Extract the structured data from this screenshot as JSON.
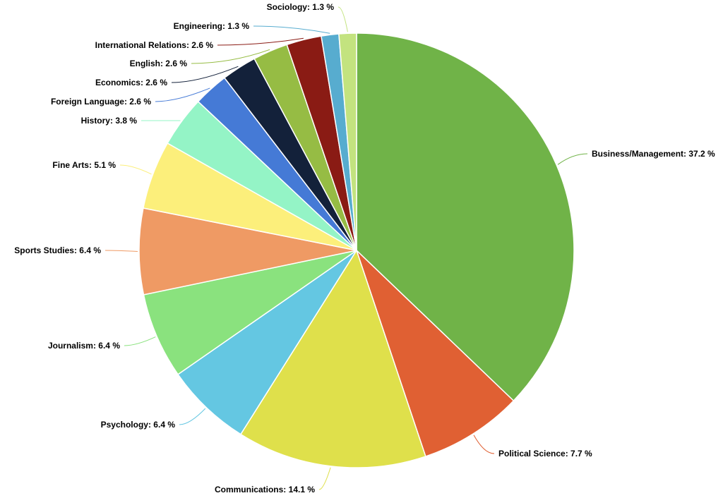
{
  "chart_data": {
    "type": "pie",
    "start_angle_deg": 0,
    "direction": "clockwise",
    "legend": "none",
    "slices": [
      {
        "label": "Business/Management",
        "value": 37.2,
        "text": "Business/Management: 37.2 %",
        "color": "#70b348"
      },
      {
        "label": "Political Science",
        "value": 7.7,
        "text": "Political Science: 7.7 %",
        "color": "#e06033"
      },
      {
        "label": "Communications",
        "value": 14.1,
        "text": "Communications: 14.1 %",
        "color": "#dfe04b"
      },
      {
        "label": "Psychology",
        "value": 6.4,
        "text": "Psychology: 6.4 %",
        "color": "#64c7e2"
      },
      {
        "label": "Journalism",
        "value": 6.4,
        "text": "Journalism: 6.4 %",
        "color": "#8ae27e"
      },
      {
        "label": "Sports Studies",
        "value": 6.4,
        "text": "Sports Studies: 6.4 %",
        "color": "#ef9a64"
      },
      {
        "label": "Fine Arts",
        "value": 5.1,
        "text": "Fine Arts: 5.1 %",
        "color": "#fcef7b"
      },
      {
        "label": "History",
        "value": 3.8,
        "text": "History: 3.8 %",
        "color": "#94f4c6"
      },
      {
        "label": "Foreign Language",
        "value": 2.6,
        "text": "Foreign Language: 2.6 %",
        "color": "#457ad6"
      },
      {
        "label": "Economics",
        "value": 2.6,
        "text": "Economics: 2.6 %",
        "color": "#13213a"
      },
      {
        "label": "English",
        "value": 2.6,
        "text": "English: 2.6 %",
        "color": "#96bc44"
      },
      {
        "label": "International Relations",
        "value": 2.6,
        "text": "International Relations: 2.6 %",
        "color": "#8a1b14"
      },
      {
        "label": "Engineering",
        "value": 1.3,
        "text": "Engineering: 1.3 %",
        "color": "#57accf"
      },
      {
        "label": "Sociology",
        "value": 1.3,
        "text": "Sociology: 1.3 %",
        "color": "#c3e37f"
      }
    ]
  }
}
